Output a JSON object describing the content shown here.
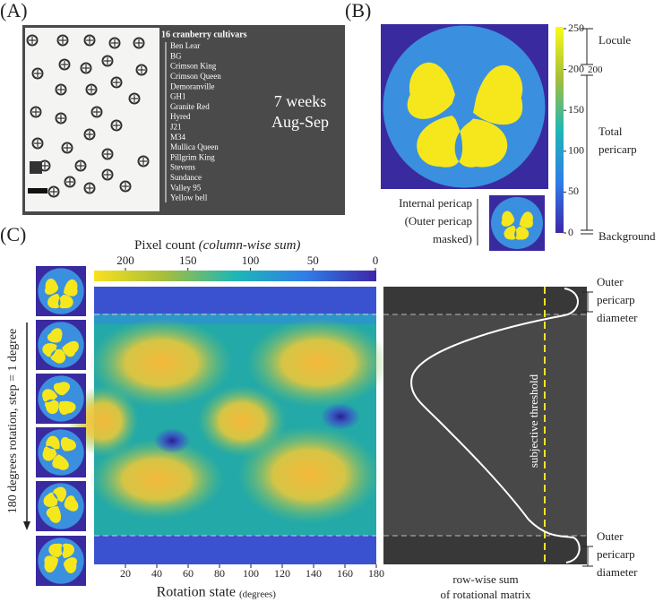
{
  "panel_a": {
    "label": "(A)",
    "heading": "16 cranberry cultivars",
    "cultivars": [
      "Ben Lear",
      "BG",
      "Crimson King",
      "Crimson Queen",
      "Demoranville",
      "GH1",
      "Granite Red",
      "Hyred",
      "J21",
      "M34",
      "Mullica Queen",
      "Pillgrim King",
      "Stevens",
      "Sundance",
      "Valley 95",
      "Yellow bell"
    ],
    "period": [
      "7 weeks",
      "Aug-Sep"
    ]
  },
  "panel_b": {
    "label": "(B)",
    "colorbar_ticks": [
      0,
      50,
      100,
      150,
      200,
      250
    ],
    "locule": "Locule",
    "locule_boundary": 200,
    "total_pericarp": [
      "Total",
      "pericarp"
    ],
    "background": "Background",
    "inset_caption": [
      "Internal pericap",
      "(Outer pericap",
      "masked)"
    ]
  },
  "panel_c": {
    "label": "(C)",
    "colorbar_title": "Pixel count",
    "colorbar_title_note": "(column-wise sum)",
    "colorbar_ticks": [
      200,
      150,
      100,
      50,
      0
    ],
    "y_label": "180 degrees rotation, step = 1 degree",
    "x_ticks": [
      20,
      40,
      60,
      80,
      100,
      120,
      140,
      160,
      180
    ],
    "x_label": "Rotation state",
    "x_label_unit": "(degrees)",
    "threshold_label": "subjective threshold",
    "outer_top": [
      "Outer",
      "pericarp",
      "diameter"
    ],
    "outer_bottom": [
      "Outer",
      "pericarp",
      "diameter"
    ],
    "profile_caption": [
      "row-wise sum",
      "of rotational matrix"
    ]
  }
}
